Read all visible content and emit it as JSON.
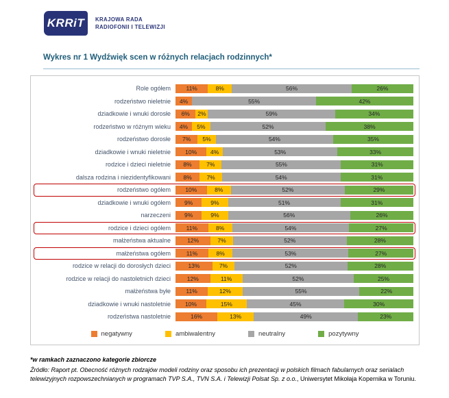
{
  "header": {
    "logo_text": "KRRiT",
    "org_line1": "KRAJOWA RADA",
    "org_line2": "RADIOFONII I TELEWIZJI"
  },
  "title": "Wykres nr 1 Wydźwięk scen w różnych relacjach rodzinnych*",
  "chart_data": {
    "type": "bar",
    "orientation": "horizontal-stacked",
    "unit": "%",
    "xlim": [
      0,
      100
    ],
    "legend_position": "bottom",
    "categories": [
      "Role ogółem",
      "rodzeństwo nieletnie",
      "dziadkowie i wnuki dorosłe",
      "rodzeństwo w różnym wieku",
      "rodzeństwo dorosłe",
      "dziadkowie i wnuki nieletnie",
      "rodzice i dzieci nieletnie",
      "dalsza rodzina i niezidentyfikowani",
      "rodzeństwo ogółem",
      "dziadkowie i wnuki ogółem",
      "narzeczeni",
      "rodzice i dzieci ogółem",
      "małżeństwa aktualne",
      "małżeństwa ogółem",
      "rodzice w relacji do dorosłych dzieci",
      "rodzice w relacji do nastoletnich dzieci",
      "małżeństwa byłe",
      "dziadkowie i wnuki nastoletnie",
      "rodzeństwa nastoletnie"
    ],
    "series": [
      {
        "key": "negatywny",
        "name": "negatywny",
        "color": "#ED7D31",
        "values": [
          11,
          4,
          6,
          4,
          7,
          10,
          8,
          8,
          10,
          9,
          9,
          11,
          12,
          11,
          13,
          12,
          11,
          10,
          16
        ]
      },
      {
        "key": "ambiwalentny",
        "name": "ambiwalentny",
        "color": "#FFC000",
        "values": [
          8,
          0,
          2,
          5,
          5,
          4,
          7,
          7,
          8,
          9,
          9,
          8,
          7,
          8,
          7,
          11,
          12,
          15,
          13
        ]
      },
      {
        "key": "neutralny",
        "name": "neutralny",
        "color": "#A6A6A6",
        "values": [
          56,
          55,
          59,
          52,
          54,
          53,
          55,
          54,
          52,
          51,
          56,
          54,
          52,
          53,
          52,
          52,
          55,
          45,
          49
        ]
      },
      {
        "key": "pozytywny",
        "name": "pozytywny",
        "color": "#70AD47",
        "values": [
          26,
          42,
          34,
          38,
          35,
          33,
          31,
          31,
          29,
          31,
          26,
          27,
          28,
          27,
          28,
          25,
          22,
          30,
          23
        ]
      }
    ],
    "boxed_categories": [
      "rodzeństwo ogółem",
      "rodzice i dzieci ogółem",
      "małżeństwa ogółem"
    ]
  },
  "footnote": "*w ramkach zaznaczono kategorie zbiorcze",
  "source": {
    "prefix": "Źródło: Raport pt. ",
    "title": "Obecność różnych rodzajów modeli rodziny oraz sposobu ich prezentacji w polskich filmach fabularnych oraz serialach telewizyjnych rozpowszechnianych w programach TVP S.A., TVN S.A. i Telewizji Polsat Sp. z o.o.",
    "suffix": ", Uniwersytet Mikołaja Kopernika w Toruniu."
  },
  "colors": {
    "title": "#1E5C78",
    "category_label": "#44546A",
    "collective_box": "#C00000",
    "brand_navy": "#283377"
  }
}
